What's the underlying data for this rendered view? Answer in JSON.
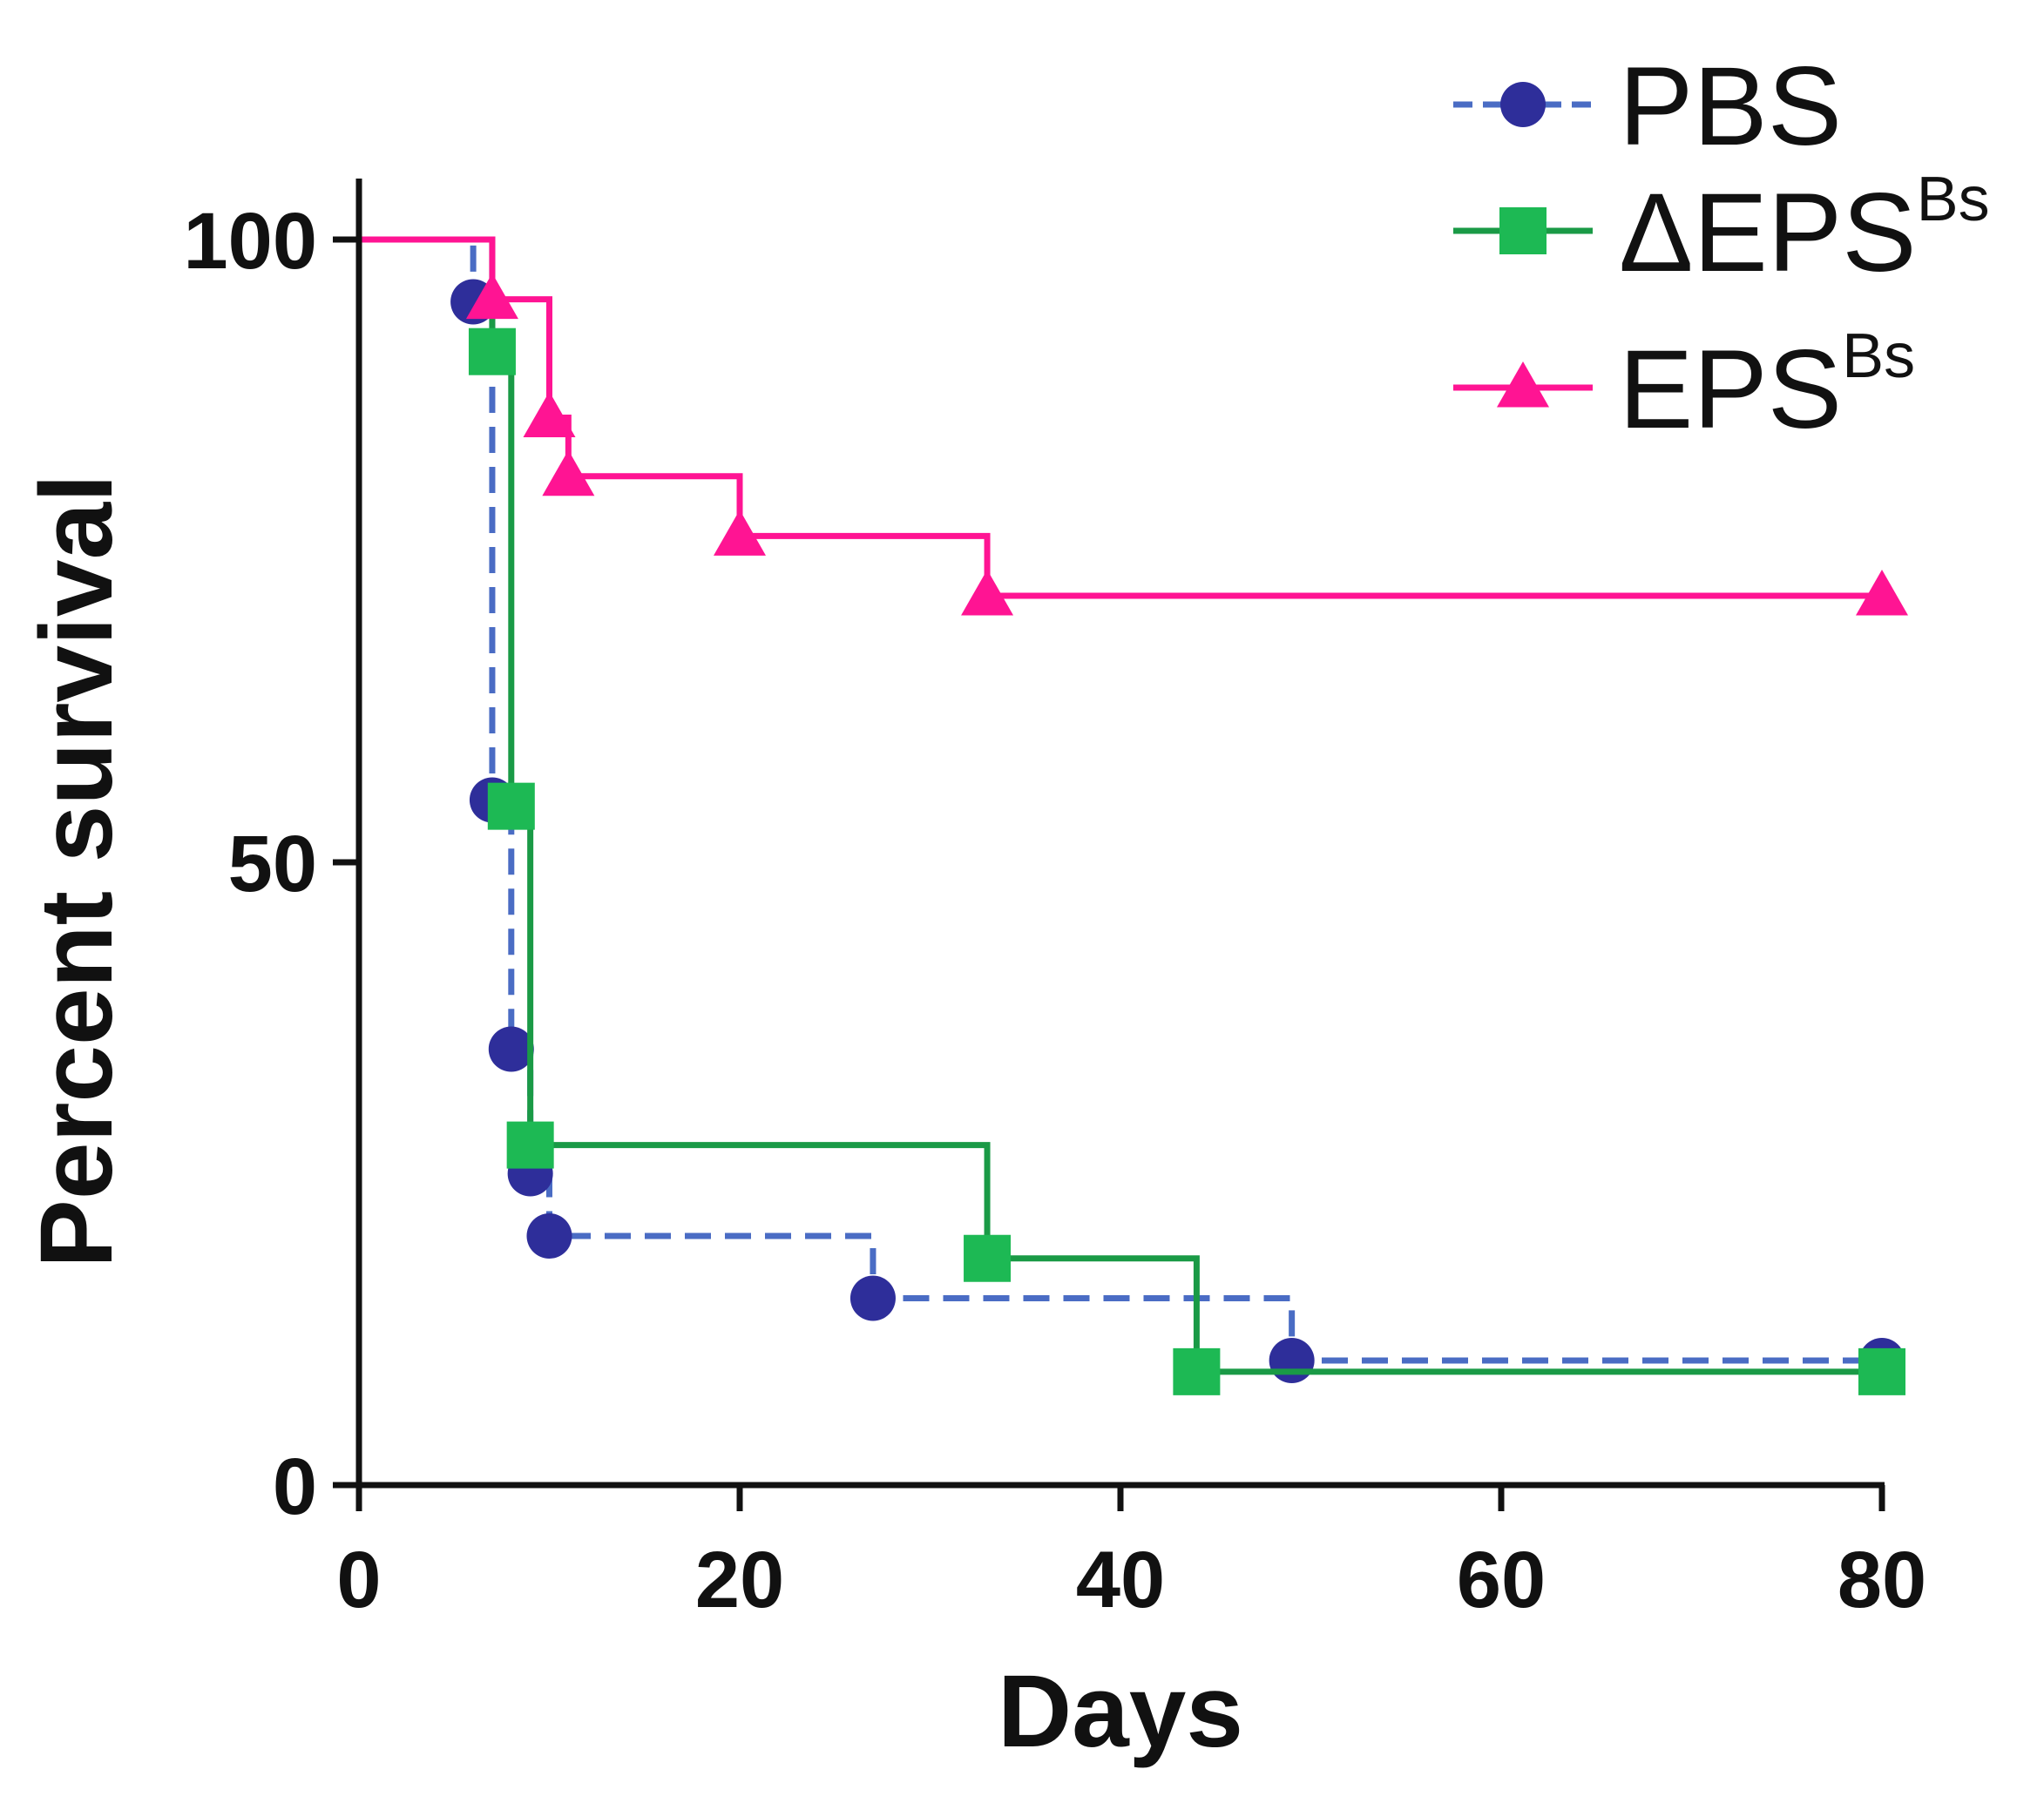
{
  "chart_data": {
    "type": "line",
    "subtype": "kaplan-meier-step",
    "title": "",
    "xlabel": "Days",
    "ylabel": "Percent survival",
    "xlim": [
      0,
      80
    ],
    "ylim": [
      0,
      100
    ],
    "x_ticks": [
      0,
      20,
      40,
      60,
      80
    ],
    "y_ticks": [
      0,
      50,
      100
    ],
    "x_tick_labels": [
      "0",
      "20",
      "40",
      "60",
      "80"
    ],
    "y_tick_labels": [
      "0",
      "50",
      "100"
    ],
    "legend_position": "top-right",
    "series": [
      {
        "name": "PBS",
        "label_main": "PBS",
        "label_sup": "",
        "color": "#2e2e9a",
        "line_color": "#4a6cc4",
        "line_style": "dashed",
        "marker": "circle",
        "steps": [
          [
            0,
            100
          ],
          [
            6,
            95
          ],
          [
            7,
            55
          ],
          [
            8,
            35
          ],
          [
            9,
            25
          ],
          [
            10,
            20
          ],
          [
            27,
            15
          ],
          [
            49,
            10
          ],
          [
            80,
            10
          ]
        ],
        "markers": [
          [
            6,
            95
          ],
          [
            7,
            55
          ],
          [
            8,
            35
          ],
          [
            9,
            25
          ],
          [
            10,
            20
          ],
          [
            27,
            15
          ],
          [
            49,
            10
          ],
          [
            80,
            10
          ]
        ]
      },
      {
        "name": "ΔEPSBs",
        "label_main": "ΔEPS",
        "label_sup": "Bs",
        "color": "#1db954",
        "line_color": "#1a9a46",
        "line_style": "solid",
        "marker": "square",
        "steps": [
          [
            0,
            100
          ],
          [
            7,
            91
          ],
          [
            8,
            54.5
          ],
          [
            9,
            27.3
          ],
          [
            33,
            18.2
          ],
          [
            44,
            9.1
          ],
          [
            80,
            9.1
          ]
        ],
        "markers": [
          [
            7,
            91
          ],
          [
            8,
            54.5
          ],
          [
            9,
            27.3
          ],
          [
            33,
            18.2
          ],
          [
            44,
            9.1
          ],
          [
            80,
            9.1
          ]
        ]
      },
      {
        "name": "EPSBs",
        "label_main": "EPS",
        "label_sup": "Bs",
        "color": "#ff1493",
        "line_color": "#ff1493",
        "line_style": "solid",
        "marker": "triangle",
        "steps": [
          [
            0,
            100
          ],
          [
            7,
            95.2
          ],
          [
            10,
            85.7
          ],
          [
            11,
            81
          ],
          [
            20,
            76.2
          ],
          [
            33,
            71.4
          ],
          [
            80,
            71.4
          ]
        ],
        "markers": [
          [
            7,
            95.2
          ],
          [
            10,
            85.7
          ],
          [
            11,
            81
          ],
          [
            20,
            76.2
          ],
          [
            33,
            71.4
          ],
          [
            80,
            71.4
          ]
        ]
      }
    ]
  }
}
